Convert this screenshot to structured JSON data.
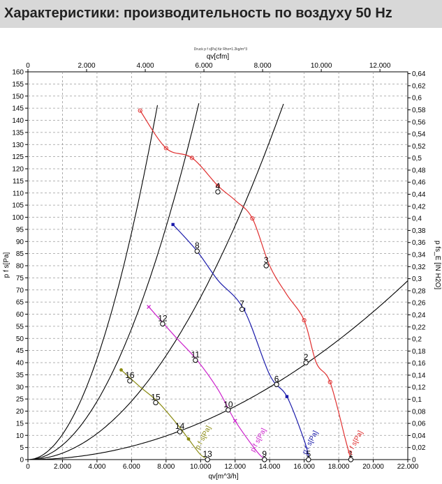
{
  "page": {
    "title": "Характеристики: производительность по воздуху 50 Hz"
  },
  "chart_data": {
    "type": "line",
    "title": "Druck p f s[Pa] für Rho=1.2kg/m^3",
    "xlabel": "qv[m^3/h]",
    "x2label": "qv[cfm]",
    "ylabel": "p f s[Pa]",
    "y2label": "p fs_E [IN H2O]",
    "xlim": [
      0,
      22000
    ],
    "x2lim": [
      0,
      12949
    ],
    "ylim": [
      0,
      160
    ],
    "y2lim": [
      0,
      0.643
    ],
    "x_ticks": [
      0,
      2000,
      4000,
      6000,
      8000,
      10000,
      12000,
      14000,
      16000,
      18000,
      20000,
      22000
    ],
    "x_tick_labels": [
      "0",
      "2.000",
      "4.000",
      "6.000",
      "8.000",
      "10.000",
      "12.000",
      "14.000",
      "16.000",
      "18.000",
      "20.000",
      "22.000"
    ],
    "x2_ticks": [
      0,
      2000,
      4000,
      6000,
      8000,
      10000,
      12000
    ],
    "x2_tick_labels": [
      "0",
      "2.000",
      "4.000",
      "6.000",
      "8.000",
      "10.000",
      "12.000"
    ],
    "y_ticks": [
      0,
      5,
      10,
      15,
      20,
      25,
      30,
      35,
      40,
      45,
      50,
      55,
      60,
      65,
      70,
      75,
      80,
      85,
      90,
      95,
      100,
      105,
      110,
      115,
      120,
      125,
      130,
      135,
      140,
      145,
      150,
      155,
      160
    ],
    "y2_ticks": [
      0,
      0.02,
      0.04,
      0.06,
      0.08,
      0.1,
      0.12,
      0.14,
      0.16,
      0.18,
      0.2,
      0.22,
      0.24,
      0.26,
      0.28,
      0.3,
      0.32,
      0.34,
      0.36,
      0.38,
      0.4,
      0.42,
      0.44,
      0.46,
      0.48,
      0.5,
      0.52,
      0.54,
      0.56,
      0.58,
      0.6,
      0.62,
      0.64
    ],
    "y2_tick_labels": [
      "0",
      "0,02",
      "0,04",
      "0,06",
      "0,08",
      "0,1",
      "0,12",
      "0,14",
      "0,16",
      "0,18",
      "0,2",
      "0,22",
      "0,24",
      "0,26",
      "0,28",
      "0,3",
      "0,32",
      "0,34",
      "0,36",
      "0,38",
      "0,4",
      "0,42",
      "0,44",
      "0,46",
      "0,48",
      "0,5",
      "0,52",
      "0,54",
      "0,56",
      "0,58",
      "0,6",
      "0,62",
      "0,64"
    ],
    "grid": true,
    "series": [
      {
        "name": "p f s[Pa]",
        "color": "#e03030",
        "x": [
          6500,
          8000,
          9500,
          11000,
          12000,
          13000,
          14000,
          15000,
          16000,
          16700,
          17500,
          18400,
          18700
        ],
        "y": [
          144,
          128.5,
          124.5,
          113,
          107,
          99.5,
          80,
          68,
          57.5,
          40,
          32,
          8,
          0
        ],
        "marker_idx": [
          0,
          1,
          2,
          3,
          5,
          8,
          10
        ]
      },
      {
        "name": "p f s[Pa]",
        "color": "#1a1aaa",
        "x": [
          8400,
          9800,
          11000,
          12500,
          14000,
          15000,
          16000,
          16300
        ],
        "y": [
          97,
          86,
          74,
          62,
          35,
          26,
          8,
          0
        ],
        "marker_idx": [
          0,
          1,
          3,
          5
        ]
      },
      {
        "name": "p f s[Pa]",
        "color": "#cc22cc",
        "x": [
          7000,
          8500,
          9800,
          11000,
          12000,
          13300,
          13800
        ],
        "y": [
          63,
          51,
          41,
          29,
          16,
          3,
          0
        ],
        "marker_idx": [
          0,
          4
        ]
      },
      {
        "name": "p f s[Pa]",
        "color": "#8a8a10",
        "x": [
          5400,
          6500,
          7500,
          8600,
          9300,
          10000,
          10500
        ],
        "y": [
          37,
          30,
          24,
          15,
          8.5,
          2,
          0
        ],
        "marker_idx": [
          0,
          4
        ]
      }
    ],
    "system_curves": [
      {
        "k": 2.6e-06
      },
      {
        "k": 1.5e-06
      },
      {
        "k": 6.7e-07
      },
      {
        "k": 1.525e-07
      }
    ],
    "curve_labels": [
      {
        "text": "p f s[Pa]",
        "color": "#e03030",
        "x": 18700,
        "y": 2
      },
      {
        "text": "p f s[Pa]",
        "color": "#1a1aaa",
        "x": 16100,
        "y": 2
      },
      {
        "text": "p f s[Pa]",
        "color": "#cc22cc",
        "x": 13100,
        "y": 3
      },
      {
        "text": "p f s[Pa]",
        "color": "#8a8a10",
        "x": 9900,
        "y": 4
      }
    ],
    "operating_points": [
      {
        "label": "1",
        "x": 18700,
        "y": 0
      },
      {
        "label": "2",
        "x": 16100,
        "y": 40
      },
      {
        "label": "3",
        "x": 13800,
        "y": 80
      },
      {
        "label": "4",
        "x": 11000,
        "y": 110.5
      },
      {
        "label": "5",
        "x": 16250,
        "y": 0
      },
      {
        "label": "6",
        "x": 14400,
        "y": 31
      },
      {
        "label": "7",
        "x": 12400,
        "y": 62
      },
      {
        "label": "8",
        "x": 9800,
        "y": 86
      },
      {
        "label": "9",
        "x": 13700,
        "y": 0
      },
      {
        "label": "10",
        "x": 11600,
        "y": 20.5
      },
      {
        "label": "11",
        "x": 9700,
        "y": 41
      },
      {
        "label": "12",
        "x": 7800,
        "y": 56
      },
      {
        "label": "13",
        "x": 10400,
        "y": 0
      },
      {
        "label": "14",
        "x": 8800,
        "y": 11.5
      },
      {
        "label": "15",
        "x": 7400,
        "y": 23.5
      },
      {
        "label": "16",
        "x": 5900,
        "y": 32.5
      }
    ]
  }
}
